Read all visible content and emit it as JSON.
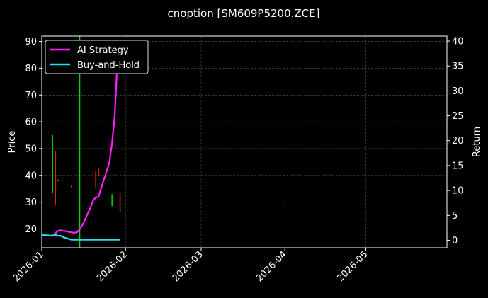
{
  "chart_data": {
    "type": "line",
    "title": "cnoption [SM609P5200.ZCE]",
    "ylabel": "Price",
    "y2label": "Return",
    "xlim": [
      "2026-01-01",
      "2026-05-31"
    ],
    "ylim": [
      13,
      92
    ],
    "y2lim": [
      -1.5,
      41
    ],
    "xticks": [
      "2026-01",
      "2026-02",
      "2026-03",
      "2026-04",
      "2026-05"
    ],
    "yticks": [
      20,
      30,
      40,
      50,
      60,
      70,
      80,
      90
    ],
    "y2ticks": [
      0,
      5,
      10,
      15,
      20,
      25,
      30,
      35,
      40
    ],
    "grid": true,
    "legend_position": "top-left",
    "colors": {
      "background": "#000000",
      "axis": "#ffffff",
      "grid": "#555555",
      "up": "#00cc00",
      "down": "#ff2020",
      "signal": "#00dd00"
    },
    "series": [
      {
        "name": "AI Strategy",
        "color": "#ff22ff",
        "axis": "right",
        "points": [
          [
            "2026-01-01",
            1.0
          ],
          [
            "2026-01-05",
            0.9
          ],
          [
            "2026-01-06",
            1.4
          ],
          [
            "2026-01-07",
            1.9
          ],
          [
            "2026-01-08",
            2.0
          ],
          [
            "2026-01-09",
            1.9
          ],
          [
            "2026-01-12",
            1.6
          ],
          [
            "2026-01-13",
            1.5
          ],
          [
            "2026-01-14",
            1.6
          ],
          [
            "2026-01-15",
            2.2
          ],
          [
            "2026-01-16",
            3.0
          ],
          [
            "2026-01-19",
            6.5
          ],
          [
            "2026-01-20",
            8.0
          ],
          [
            "2026-01-21",
            8.6
          ],
          [
            "2026-01-22",
            8.7
          ],
          [
            "2026-01-23",
            10.5
          ],
          [
            "2026-01-26",
            15.5
          ],
          [
            "2026-01-27",
            19.4
          ],
          [
            "2026-01-28",
            25.0
          ],
          [
            "2026-01-29",
            36.0
          ],
          [
            "2026-01-30",
            40.0
          ]
        ]
      },
      {
        "name": "Buy-and-Hold",
        "color": "#22ddee",
        "axis": "right",
        "points": [
          [
            "2026-01-01",
            1.1
          ],
          [
            "2026-01-05",
            0.9
          ],
          [
            "2026-01-06",
            1.1
          ],
          [
            "2026-01-07",
            0.9
          ],
          [
            "2026-01-08",
            0.9
          ],
          [
            "2026-01-09",
            0.6
          ],
          [
            "2026-01-12",
            0.1
          ],
          [
            "2026-01-13",
            0.1
          ],
          [
            "2026-01-20",
            0.1
          ],
          [
            "2026-01-27",
            0.1
          ],
          [
            "2026-01-30",
            0.1
          ]
        ]
      }
    ],
    "candles": [
      {
        "date": "2026-01-05",
        "low": 33.5,
        "high": 55,
        "dir": "up"
      },
      {
        "date": "2026-01-06",
        "low": 29,
        "high": 49,
        "dir": "down"
      },
      {
        "date": "2026-01-07",
        "low": 37.8,
        "high": 38.2,
        "dir": "down"
      },
      {
        "date": "2026-01-12",
        "low": 35.5,
        "high": 36.2,
        "dir": "down"
      },
      {
        "date": "2026-01-21",
        "low": 35.5,
        "high": 41.5,
        "dir": "down"
      },
      {
        "date": "2026-01-22",
        "low": 40,
        "high": 42.5,
        "dir": "down"
      },
      {
        "date": "2026-01-27",
        "low": 28.5,
        "high": 33,
        "dir": "up"
      },
      {
        "date": "2026-01-30",
        "low": 26.5,
        "high": 33.5,
        "dir": "down"
      }
    ],
    "signals": [
      "2026-01-15"
    ]
  }
}
